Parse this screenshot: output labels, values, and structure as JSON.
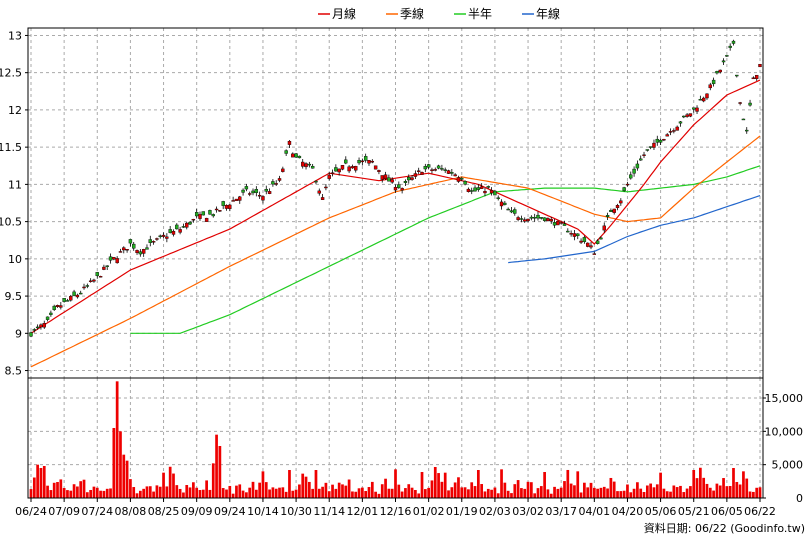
{
  "legend": [
    {
      "label": "月線",
      "color": "#e00000"
    },
    {
      "label": "季線",
      "color": "#ff6600"
    },
    {
      "label": "半年",
      "color": "#22cc22"
    },
    {
      "label": "年線",
      "color": "#2266cc"
    }
  ],
  "credit": "資料日期: 06/22  (Goodinfo.tw)",
  "colors": {
    "up": "#e00000",
    "down": "#22aa22",
    "volume": "#ee0000",
    "grid": "#aaaaaa"
  },
  "chart_data": {
    "type": "candlestick",
    "price_axis": {
      "ylim": [
        8.4,
        13.1
      ],
      "ticks": [
        "8.5",
        "9",
        "9.5",
        "10",
        "10.5",
        "11",
        "11.5",
        "12",
        "12.5",
        "13"
      ]
    },
    "volume_axis": {
      "ylim": [
        0,
        18000
      ],
      "ticks": [
        "0",
        "5,000",
        "10,000",
        "15,000"
      ]
    },
    "x_ticks": [
      "06/24",
      "07/09",
      "07/24",
      "08/08",
      "08/25",
      "09/09",
      "09/24",
      "10/14",
      "10/30",
      "11/14",
      "12/01",
      "12/16",
      "01/02",
      "01/19",
      "02/03",
      "03/02",
      "03/17",
      "04/01",
      "04/20",
      "05/06",
      "05/21",
      "06/05",
      "06/22"
    ],
    "x_tick_index": [
      0,
      10,
      20,
      30,
      40,
      50,
      60,
      70,
      80,
      90,
      100,
      110,
      120,
      130,
      140,
      150,
      160,
      170,
      180,
      190,
      200,
      210,
      220
    ],
    "n": 221,
    "close_anchors": [
      [
        0,
        9.0
      ],
      [
        5,
        9.15
      ],
      [
        8,
        9.35
      ],
      [
        15,
        9.55
      ],
      [
        20,
        9.75
      ],
      [
        25,
        10.0
      ],
      [
        30,
        10.2
      ],
      [
        33,
        10.1
      ],
      [
        40,
        10.3
      ],
      [
        45,
        10.4
      ],
      [
        50,
        10.55
      ],
      [
        55,
        10.6
      ],
      [
        60,
        10.75
      ],
      [
        65,
        10.9
      ],
      [
        70,
        10.85
      ],
      [
        75,
        11.05
      ],
      [
        78,
        11.55
      ],
      [
        80,
        11.35
      ],
      [
        85,
        11.2
      ],
      [
        88,
        10.8
      ],
      [
        90,
        11.1
      ],
      [
        95,
        11.25
      ],
      [
        100,
        11.3
      ],
      [
        103,
        11.3
      ],
      [
        108,
        11.05
      ],
      [
        112,
        10.95
      ],
      [
        118,
        11.2
      ],
      [
        125,
        11.2
      ],
      [
        130,
        11.1
      ],
      [
        133,
        10.9
      ],
      [
        138,
        10.95
      ],
      [
        140,
        10.85
      ],
      [
        145,
        10.6
      ],
      [
        150,
        10.55
      ],
      [
        155,
        10.55
      ],
      [
        160,
        10.45
      ],
      [
        165,
        10.3
      ],
      [
        168,
        10.2
      ],
      [
        170,
        10.1
      ],
      [
        172,
        10.3
      ],
      [
        175,
        10.65
      ],
      [
        178,
        10.8
      ],
      [
        180,
        11.0
      ],
      [
        185,
        11.4
      ],
      [
        190,
        11.6
      ],
      [
        195,
        11.8
      ],
      [
        200,
        12.0
      ],
      [
        205,
        12.3
      ],
      [
        210,
        12.7
      ],
      [
        212,
        12.9
      ],
      [
        214,
        12.1
      ],
      [
        216,
        11.7
      ],
      [
        218,
        12.4
      ],
      [
        220,
        12.6
      ]
    ],
    "ma_month_anchors": [
      [
        0,
        9.0
      ],
      [
        30,
        9.85
      ],
      [
        60,
        10.4
      ],
      [
        90,
        11.15
      ],
      [
        105,
        11.05
      ],
      [
        120,
        11.15
      ],
      [
        135,
        11.0
      ],
      [
        150,
        10.7
      ],
      [
        165,
        10.4
      ],
      [
        170,
        10.2
      ],
      [
        175,
        10.45
      ],
      [
        185,
        11.0
      ],
      [
        190,
        11.3
      ],
      [
        200,
        11.8
      ],
      [
        210,
        12.2
      ],
      [
        220,
        12.4
      ]
    ],
    "ma_quarter_anchors": [
      [
        0,
        8.55
      ],
      [
        30,
        9.2
      ],
      [
        60,
        9.9
      ],
      [
        90,
        10.55
      ],
      [
        110,
        10.9
      ],
      [
        130,
        11.1
      ],
      [
        150,
        10.95
      ],
      [
        170,
        10.6
      ],
      [
        180,
        10.5
      ],
      [
        190,
        10.55
      ],
      [
        200,
        10.95
      ],
      [
        210,
        11.3
      ],
      [
        220,
        11.65
      ]
    ],
    "ma_half_anchors": [
      [
        30,
        9.0
      ],
      [
        45,
        9.0
      ],
      [
        60,
        9.25
      ],
      [
        90,
        9.9
      ],
      [
        120,
        10.55
      ],
      [
        140,
        10.9
      ],
      [
        155,
        10.95
      ],
      [
        170,
        10.95
      ],
      [
        180,
        10.9
      ],
      [
        190,
        10.95
      ],
      [
        200,
        11.0
      ],
      [
        210,
        11.1
      ],
      [
        220,
        11.25
      ]
    ],
    "ma_year_anchors": [
      [
        144,
        9.95
      ],
      [
        155,
        10.0
      ],
      [
        170,
        10.1
      ],
      [
        180,
        10.3
      ],
      [
        190,
        10.45
      ],
      [
        200,
        10.55
      ],
      [
        210,
        10.7
      ],
      [
        220,
        10.85
      ]
    ],
    "volume_base": [
      1200,
      2400,
      3900,
      3000,
      2000,
      1500,
      1000,
      1800,
      2100,
      2700,
      1400,
      1600,
      1200,
      2100,
      1700,
      2500,
      2600,
      800,
      1200,
      1500,
      1700,
      900,
      1500,
      1900,
      1300,
      800,
      1700,
      2400,
      1300,
      1800,
      2200,
      2000,
      1000,
      1300,
      1900,
      1800,
      1600,
      900,
      2000,
      1400
    ],
    "volume_spikes": [
      [
        2,
        5000
      ],
      [
        3,
        4500
      ],
      [
        4,
        4800
      ],
      [
        25,
        10500
      ],
      [
        26,
        17500
      ],
      [
        27,
        10000
      ],
      [
        28,
        6500
      ],
      [
        29,
        5600
      ],
      [
        40,
        3800
      ],
      [
        55,
        5200
      ],
      [
        56,
        9500
      ],
      [
        57,
        7800
      ],
      [
        70,
        4000
      ],
      [
        78,
        4200
      ],
      [
        86,
        4200
      ],
      [
        110,
        4300
      ],
      [
        118,
        3900
      ],
      [
        125,
        3800
      ],
      [
        135,
        4200
      ],
      [
        142,
        4300
      ],
      [
        155,
        3900
      ],
      [
        165,
        4000
      ],
      [
        190,
        3800
      ],
      [
        200,
        4200
      ],
      [
        212,
        4500
      ],
      [
        215,
        4000
      ]
    ]
  }
}
